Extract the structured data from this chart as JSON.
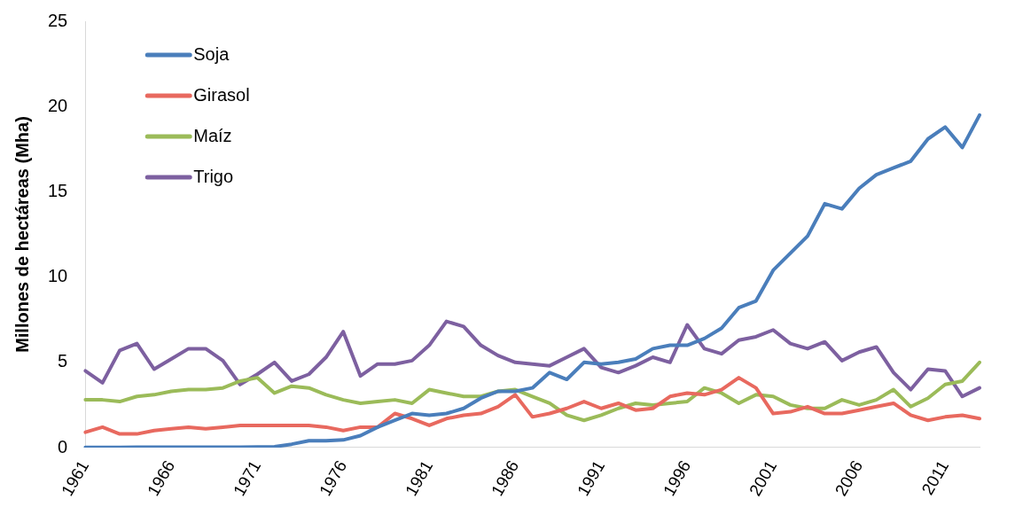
{
  "chart_data": {
    "type": "line",
    "ylabel": "Millones de hectáreas (Mha)",
    "categories": [
      "1961",
      null,
      null,
      null,
      null,
      "1966",
      null,
      null,
      null,
      null,
      "1971",
      null,
      null,
      null,
      null,
      "1976",
      null,
      null,
      null,
      null,
      "1981",
      null,
      null,
      null,
      null,
      "1986",
      null,
      null,
      null,
      null,
      "1991",
      null,
      null,
      null,
      null,
      "1996",
      null,
      null,
      null,
      null,
      "2001",
      null,
      null,
      null,
      null,
      "2006",
      null,
      null,
      null,
      null,
      "2011",
      null,
      null
    ],
    "series": [
      {
        "name": "Soja",
        "color": "#4a7ebb",
        "values": [
          0.01,
          0.01,
          0.01,
          0.02,
          0.02,
          0.02,
          0.03,
          0.03,
          0.03,
          0.03,
          0.04,
          0.05,
          0.2,
          0.4,
          0.4,
          0.45,
          0.7,
          1.2,
          1.6,
          2.0,
          1.9,
          2.0,
          2.3,
          2.9,
          3.3,
          3.3,
          3.5,
          4.4,
          4.0,
          5.0,
          4.9,
          5.0,
          5.2,
          5.8,
          6.0,
          6.0,
          6.4,
          7.0,
          8.2,
          8.6,
          10.4,
          11.4,
          12.4,
          14.3,
          14.0,
          15.2,
          16.0,
          16.4,
          16.8,
          18.1,
          18.8,
          17.6,
          19.5
        ]
      },
      {
        "name": "Girasol",
        "color": "#e8695f",
        "values": [
          0.9,
          1.2,
          0.8,
          0.8,
          1.0,
          1.1,
          1.2,
          1.1,
          1.2,
          1.3,
          1.3,
          1.3,
          1.3,
          1.3,
          1.2,
          1.0,
          1.2,
          1.2,
          2.0,
          1.7,
          1.3,
          1.7,
          1.9,
          2.0,
          2.4,
          3.1,
          1.8,
          2.0,
          2.3,
          2.7,
          2.3,
          2.6,
          2.2,
          2.3,
          3.0,
          3.2,
          3.1,
          3.4,
          4.1,
          3.5,
          2.0,
          2.1,
          2.4,
          2.0,
          2.0,
          2.2,
          2.4,
          2.6,
          1.9,
          1.6,
          1.8,
          1.9,
          1.7
        ]
      },
      {
        "name": "Maíz",
        "color": "#9bbb59",
        "values": [
          2.8,
          2.8,
          2.7,
          3.0,
          3.1,
          3.3,
          3.4,
          3.4,
          3.5,
          3.9,
          4.1,
          3.2,
          3.6,
          3.5,
          3.1,
          2.8,
          2.6,
          2.7,
          2.8,
          2.6,
          3.4,
          3.2,
          3.0,
          3.0,
          3.3,
          3.4,
          3.0,
          2.6,
          1.9,
          1.6,
          1.9,
          2.3,
          2.6,
          2.5,
          2.6,
          2.7,
          3.5,
          3.2,
          2.6,
          3.1,
          3.0,
          2.5,
          2.3,
          2.3,
          2.8,
          2.5,
          2.8,
          3.4,
          2.4,
          2.9,
          3.7,
          3.9,
          5.0
        ]
      },
      {
        "name": "Trigo",
        "color": "#7d60a0",
        "values": [
          4.5,
          3.8,
          5.7,
          6.1,
          4.6,
          5.2,
          5.8,
          5.8,
          5.1,
          3.7,
          4.3,
          5.0,
          3.9,
          4.3,
          5.3,
          6.8,
          4.2,
          4.9,
          4.9,
          5.1,
          6.0,
          7.4,
          7.1,
          6.0,
          5.4,
          5.0,
          4.9,
          4.8,
          5.3,
          5.8,
          4.7,
          4.4,
          4.8,
          5.3,
          5.0,
          7.2,
          5.8,
          5.5,
          6.3,
          6.5,
          6.9,
          6.1,
          5.8,
          6.2,
          5.1,
          5.6,
          5.9,
          4.4,
          3.4,
          4.6,
          4.5,
          3.0,
          3.5
        ]
      }
    ],
    "ylim": [
      0,
      25
    ],
    "yticks": [
      0,
      5,
      10,
      15,
      20,
      25
    ],
    "grid": false,
    "legend": "top left",
    "marker": "none",
    "line_style": "solid"
  }
}
